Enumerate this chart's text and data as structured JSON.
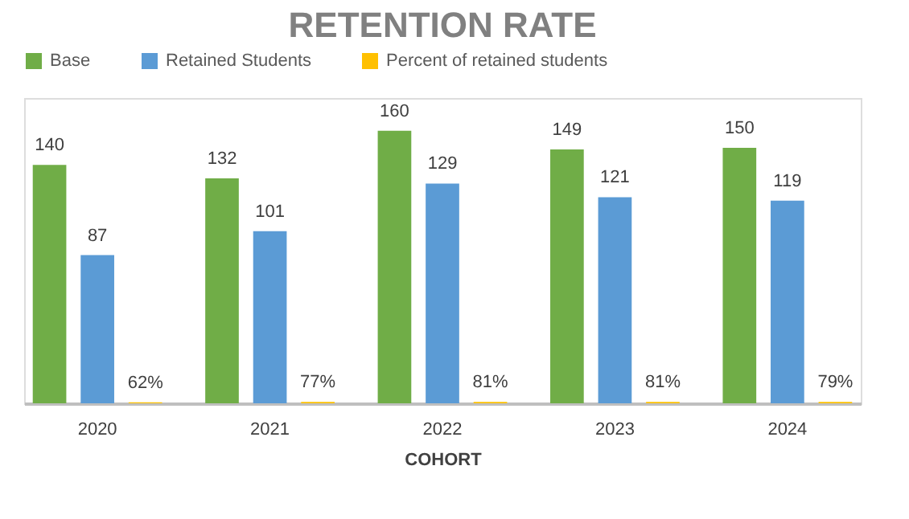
{
  "chart_data": {
    "type": "bar",
    "title": "RETENTION RATE",
    "xlabel": "COHORT",
    "legend": "top",
    "categories": [
      "2020",
      "2021",
      "2022",
      "2023",
      "2024"
    ],
    "series": [
      {
        "name": "Base",
        "color": "#70ad47",
        "values": [
          140,
          132,
          160,
          149,
          150
        ],
        "value_labels": [
          "140",
          "132",
          "160",
          "149",
          "150"
        ]
      },
      {
        "name": "Retained Students",
        "color": "#5b9bd5",
        "values": [
          87,
          101,
          129,
          121,
          119
        ],
        "value_labels": [
          "87",
          "101",
          "129",
          "121",
          "119"
        ]
      },
      {
        "name": "Percent of retained students",
        "color": "#ffc000",
        "values": [
          0.62,
          0.77,
          0.81,
          0.81,
          0.79
        ],
        "value_labels": [
          "62%",
          "77%",
          "81%",
          "81%",
          "79%"
        ]
      }
    ]
  }
}
